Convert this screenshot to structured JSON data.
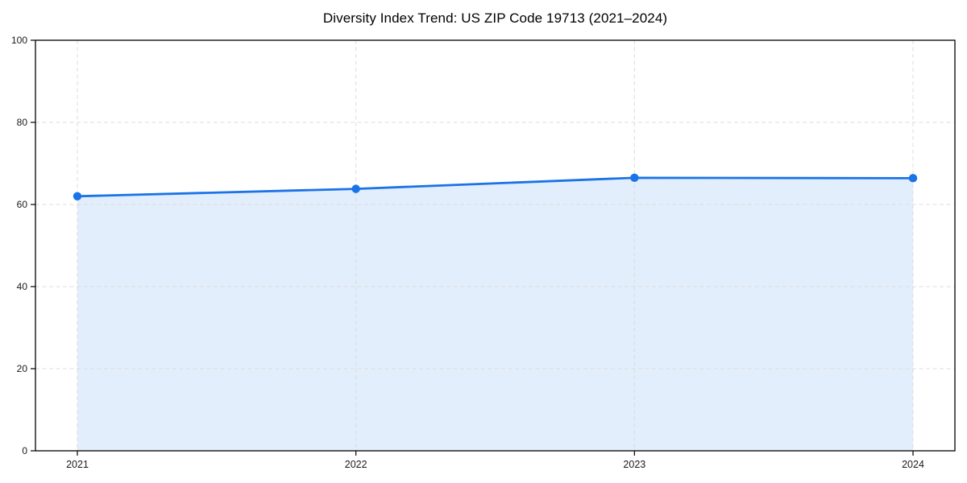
{
  "page": {
    "background": "#ffffff"
  },
  "chart_data": {
    "type": "area",
    "title": "Diversity Index Trend: US ZIP Code 19713 (2021–2024)",
    "x": [
      "2021",
      "2022",
      "2023",
      "2024"
    ],
    "series": [
      {
        "name": "Diversity Index",
        "values": [
          62.0,
          63.8,
          66.5,
          66.4
        ]
      }
    ],
    "xlabel": "",
    "ylabel": "",
    "ylim": [
      0,
      100
    ],
    "yticks": [
      0,
      20,
      40,
      60,
      80,
      100
    ],
    "grid": {
      "style": "dashed",
      "horizontal": true,
      "vertical": true
    },
    "legend": "none",
    "colors": {
      "line": "#1a73e8",
      "marker": "#1a73e8",
      "fill": "rgba(26,115,232,0.12)",
      "grid": "#dcdcdc",
      "spine": "#000000",
      "tick": "#000000",
      "tick_label": "#1a1a1a",
      "title": "#000000"
    }
  }
}
